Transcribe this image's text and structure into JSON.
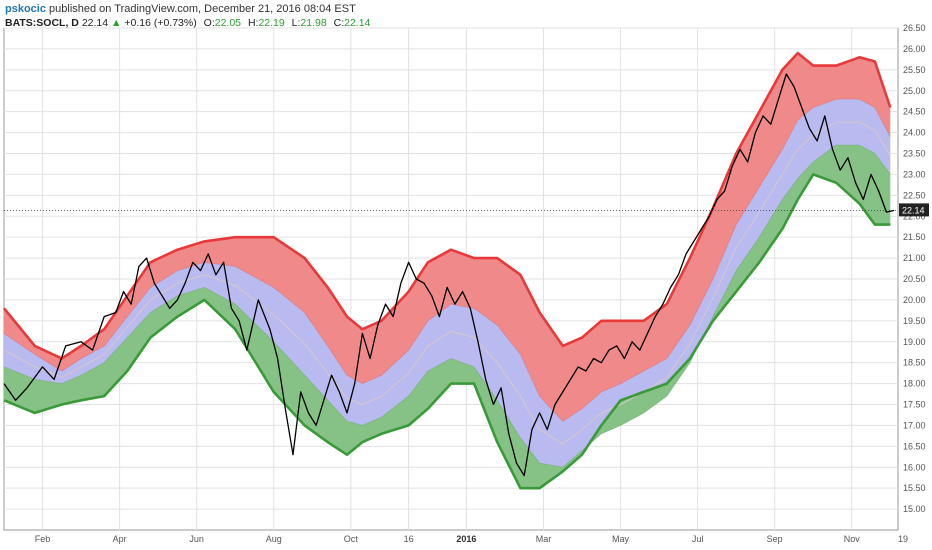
{
  "header": {
    "author": "pskocic",
    "published": "published on TradingView.com, December 21, 2016 08:04 EST",
    "symbol": "BATS:SOCL, D",
    "last": "22.14",
    "change": "+0.16 (+0.73%)",
    "open_label": "O:",
    "open": "22.05",
    "high_label": "H:",
    "high": "22.19",
    "low_label": "L:",
    "low": "21.98",
    "close_label": "C:",
    "close": "22.14"
  },
  "chart_data": {
    "type": "line",
    "title": "",
    "xlabel": "",
    "ylabel": "",
    "ylim": [
      14.5,
      26.5
    ],
    "yticks": [
      "15.00",
      "15.50",
      "16.00",
      "16.50",
      "17.00",
      "17.50",
      "18.00",
      "18.50",
      "19.00",
      "19.50",
      "20.00",
      "20.50",
      "21.00",
      "21.50",
      "22.00",
      "22.50",
      "23.00",
      "23.50",
      "24.00",
      "24.50",
      "25.00",
      "25.50",
      "26.00",
      "26.50"
    ],
    "x_range": [
      0,
      23.2
    ],
    "xticks": [
      {
        "label": "Feb",
        "x": 1
      },
      {
        "label": "Apr",
        "x": 3
      },
      {
        "label": "Jun",
        "x": 5
      },
      {
        "label": "Aug",
        "x": 7
      },
      {
        "label": "Oct",
        "x": 9
      },
      {
        "label": "16",
        "x": 10.5
      },
      {
        "label": "2016",
        "x": 12,
        "bold": true
      },
      {
        "label": "Mar",
        "x": 14
      },
      {
        "label": "May",
        "x": 16
      },
      {
        "label": "Jul",
        "x": 18
      },
      {
        "label": "Sep",
        "x": 20
      },
      {
        "label": "Nov",
        "x": 22
      },
      {
        "label": "19",
        "x": 23.4
      }
    ],
    "price_line_value": 22.14,
    "price_label": "22.14",
    "grid": true,
    "colors": {
      "upper": "#e8393a",
      "lower": "#3a9a3a",
      "price": "#000000",
      "upper_fill": "#f08a8a",
      "mid_fill": "#b9baf0",
      "lower_fill": "#86c286",
      "mid_line": "#d8c8c8"
    },
    "series": [
      {
        "x": [
          0,
          0.8,
          1.5,
          2.0,
          2.6,
          3.2,
          3.8,
          4.5,
          5.2,
          6.0,
          7.0,
          7.8,
          8.4,
          8.9,
          9.3,
          9.8,
          10.5,
          11.0,
          11.6,
          12.2,
          12.8,
          13.4,
          13.9,
          14.5,
          15.0,
          15.5,
          16.0,
          16.6,
          17.2,
          17.8,
          18.4,
          19.0,
          19.6,
          20.2,
          20.6,
          21.0,
          21.6,
          22.2,
          22.6,
          23.0
        ],
        "values": [
          19.8,
          18.9,
          18.6,
          18.9,
          19.3,
          20.1,
          20.9,
          21.2,
          21.4,
          21.5,
          21.5,
          21.0,
          20.3,
          19.6,
          19.3,
          19.5,
          20.2,
          20.9,
          21.2,
          21.0,
          21.0,
          20.6,
          19.7,
          18.9,
          19.1,
          19.5,
          19.5,
          19.5,
          19.9,
          21.0,
          22.2,
          23.5,
          24.5,
          25.5,
          25.9,
          25.6,
          25.6,
          25.8,
          25.7,
          24.6
        ]
      },
      {
        "x": [
          0,
          0.8,
          1.5,
          2.0,
          2.6,
          3.2,
          3.8,
          4.5,
          5.2,
          6.0,
          7.0,
          7.8,
          8.4,
          8.9,
          9.3,
          9.8,
          10.5,
          11.0,
          11.6,
          12.2,
          12.8,
          13.4,
          13.9,
          14.5,
          15.0,
          15.5,
          16.0,
          16.6,
          17.2,
          17.8,
          18.4,
          19.0,
          19.6,
          20.2,
          20.6,
          21.0,
          21.6,
          22.2,
          22.6,
          23.0
        ],
        "values": [
          19.2,
          18.7,
          18.3,
          18.6,
          18.9,
          19.6,
          20.3,
          20.7,
          20.9,
          20.8,
          20.3,
          19.7,
          18.9,
          18.2,
          18.0,
          18.2,
          18.8,
          19.5,
          19.9,
          19.8,
          19.4,
          18.7,
          17.7,
          17.1,
          17.4,
          17.8,
          18.0,
          18.3,
          18.6,
          19.4,
          20.5,
          21.8,
          22.7,
          23.6,
          24.3,
          24.6,
          24.8,
          24.8,
          24.6,
          23.9
        ]
      },
      {
        "x": [
          0,
          0.8,
          1.5,
          2.0,
          2.6,
          3.2,
          3.8,
          4.5,
          5.2,
          6.0,
          7.0,
          7.8,
          8.4,
          8.9,
          9.3,
          9.8,
          10.5,
          11.0,
          11.6,
          12.2,
          12.8,
          13.4,
          13.9,
          14.5,
          15.0,
          15.5,
          16.0,
          16.6,
          17.2,
          17.8,
          18.4,
          19.0,
          19.6,
          20.2,
          20.6,
          21.0,
          21.6,
          22.2,
          22.6,
          23.0
        ],
        "values": [
          18.4,
          18.1,
          18.0,
          18.2,
          18.5,
          19.1,
          19.7,
          20.1,
          20.3,
          19.9,
          19.0,
          18.2,
          17.6,
          17.1,
          17.0,
          17.2,
          17.7,
          18.3,
          18.6,
          18.4,
          17.6,
          16.7,
          16.1,
          16.0,
          16.4,
          16.8,
          17.0,
          17.3,
          17.7,
          18.5,
          19.6,
          20.7,
          21.5,
          22.4,
          22.9,
          23.3,
          23.7,
          23.7,
          23.5,
          23.0
        ]
      },
      {
        "x": [
          0,
          0.8,
          1.5,
          2.0,
          2.6,
          3.2,
          3.8,
          4.5,
          5.2,
          6.0,
          7.0,
          7.8,
          8.4,
          8.9,
          9.3,
          9.8,
          10.5,
          11.0,
          11.6,
          12.2,
          12.8,
          13.4,
          13.9,
          14.5,
          15.0,
          15.5,
          16.0,
          16.6,
          17.2,
          17.8,
          18.4,
          19.0,
          19.6,
          20.2,
          20.6,
          21.0,
          21.6,
          22.2,
          22.6,
          23.0
        ],
        "values": [
          17.6,
          17.3,
          17.5,
          17.6,
          17.7,
          18.3,
          19.1,
          19.6,
          20.0,
          19.3,
          17.8,
          17.0,
          16.6,
          16.3,
          16.6,
          16.8,
          17.0,
          17.4,
          18.0,
          18.0,
          16.6,
          15.5,
          15.5,
          15.9,
          16.3,
          17.0,
          17.6,
          17.8,
          18.0,
          18.6,
          19.5,
          20.2,
          20.9,
          21.7,
          22.4,
          23.0,
          22.8,
          22.3,
          21.8,
          21.8
        ]
      },
      {
        "x": [
          0,
          0.3,
          0.6,
          1.0,
          1.3,
          1.6,
          2.0,
          2.3,
          2.6,
          2.9,
          3.1,
          3.3,
          3.5,
          3.7,
          3.9,
          4.1,
          4.3,
          4.5,
          4.7,
          4.9,
          5.1,
          5.3,
          5.5,
          5.7,
          5.9,
          6.1,
          6.3,
          6.6,
          6.9,
          7.1,
          7.3,
          7.5,
          7.7,
          7.9,
          8.1,
          8.3,
          8.5,
          8.7,
          8.9,
          9.1,
          9.3,
          9.5,
          9.7,
          9.9,
          10.1,
          10.3,
          10.5,
          10.7,
          10.9,
          11.1,
          11.3,
          11.5,
          11.7,
          11.9,
          12.1,
          12.3,
          12.5,
          12.7,
          12.9,
          13.1,
          13.3,
          13.5,
          13.7,
          13.9,
          14.1,
          14.3,
          14.5,
          14.7,
          14.9,
          15.1,
          15.3,
          15.5,
          15.7,
          15.9,
          16.1,
          16.3,
          16.5,
          16.7,
          16.9,
          17.1,
          17.3,
          17.5,
          17.7,
          17.9,
          18.1,
          18.3,
          18.5,
          18.7,
          18.9,
          19.1,
          19.3,
          19.5,
          19.7,
          19.9,
          20.1,
          20.3,
          20.5,
          20.7,
          20.9,
          21.1,
          21.3,
          21.5,
          21.7,
          21.9,
          22.1,
          22.3,
          22.5,
          22.7,
          22.9,
          23.1
        ],
        "values": [
          18.0,
          17.6,
          17.9,
          18.4,
          18.1,
          18.9,
          19.0,
          18.8,
          19.6,
          19.7,
          20.2,
          19.9,
          20.8,
          21.0,
          20.4,
          20.1,
          19.8,
          20.0,
          20.4,
          20.9,
          20.7,
          21.1,
          20.6,
          20.9,
          19.8,
          19.5,
          18.8,
          20.0,
          19.3,
          18.6,
          17.4,
          16.3,
          17.8,
          17.3,
          17.0,
          17.6,
          18.2,
          17.8,
          17.3,
          18.0,
          19.2,
          18.6,
          19.4,
          19.9,
          19.6,
          20.4,
          20.9,
          20.5,
          20.4,
          20.1,
          19.6,
          20.3,
          19.9,
          20.2,
          19.8,
          19.0,
          18.1,
          17.5,
          17.9,
          16.8,
          16.1,
          15.8,
          16.9,
          17.3,
          16.9,
          17.5,
          17.8,
          18.1,
          18.4,
          18.3,
          18.6,
          18.5,
          18.8,
          18.9,
          18.6,
          19.0,
          18.8,
          19.2,
          19.6,
          19.9,
          20.3,
          20.6,
          21.1,
          21.4,
          21.7,
          22.0,
          22.4,
          22.6,
          23.2,
          23.6,
          23.3,
          24.0,
          24.4,
          24.2,
          24.8,
          25.4,
          25.1,
          24.6,
          24.1,
          23.8,
          24.4,
          23.6,
          23.1,
          23.4,
          22.8,
          22.4,
          23.0,
          22.6,
          22.1,
          22.14
        ]
      }
    ],
    "series_roles": [
      "upper",
      "upper-mid",
      "lower-mid",
      "lower",
      "price"
    ]
  }
}
